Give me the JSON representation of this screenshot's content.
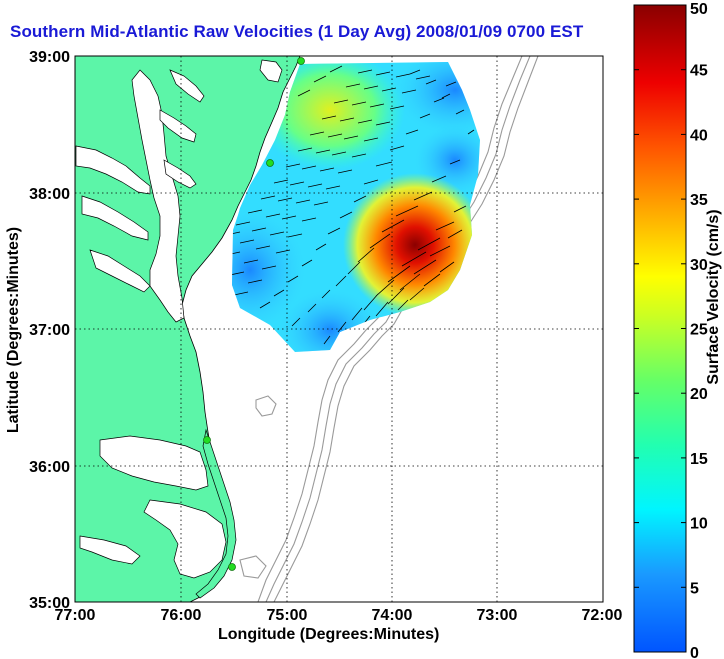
{
  "title": "Southern Mid-Atlantic Raw Velocities (1 Day Avg) 2008/01/09 0700 EST",
  "xlabel": "Longitude (Degrees:Minutes)",
  "ylabel": "Latitude (Degrees:Minutes)",
  "colorbar": {
    "label": "Surface Velocity (cm/s)",
    "min": 0,
    "max": 50,
    "ticks": [
      "0",
      "5",
      "10",
      "15",
      "20",
      "25",
      "30",
      "35",
      "40",
      "45",
      "50"
    ]
  },
  "map": {
    "x_ticks": [
      "77:00",
      "76:00",
      "75:00",
      "74:00",
      "73:00",
      "72:00"
    ],
    "y_ticks": [
      "39:00",
      "38:00",
      "37:00",
      "36:00",
      "35:00"
    ],
    "lon_range": [
      -77,
      -72
    ],
    "lat_range": [
      35,
      39
    ],
    "colors": {
      "land": "#5cf5a8",
      "ocean": "#ffffff",
      "coastline": "#000000",
      "bathymetry": "#999999",
      "stations": "#22dd22",
      "title": "#1a1ad6"
    }
  }
}
